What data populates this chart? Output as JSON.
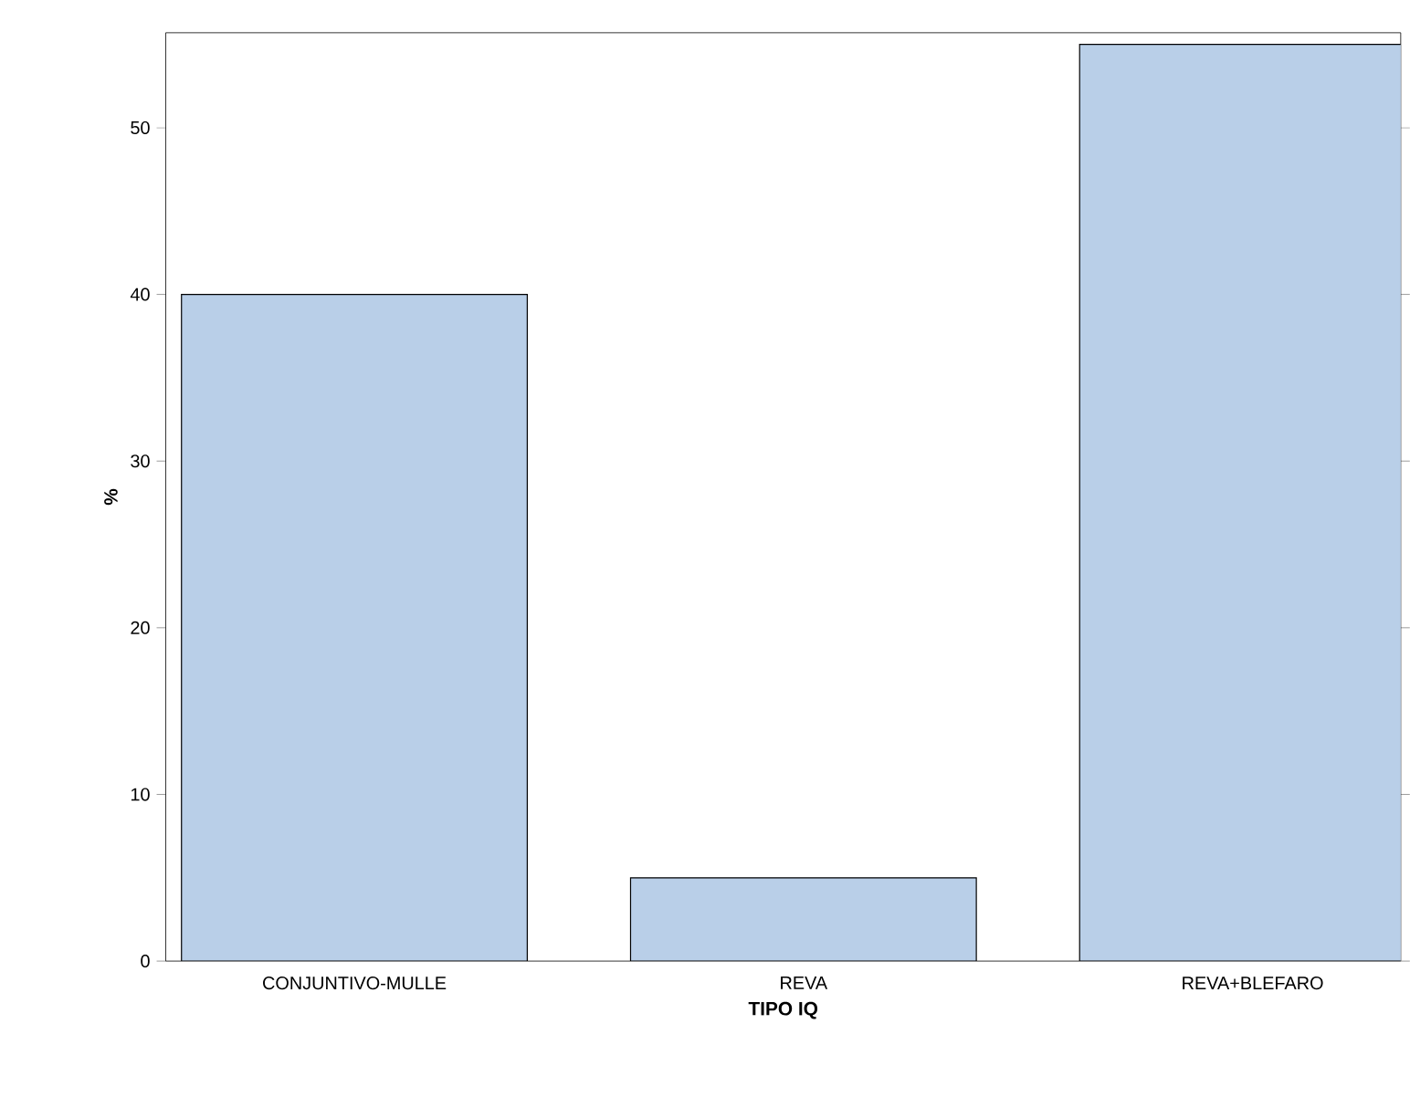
{
  "chart_data": {
    "type": "bar",
    "xlabel": "TIPO IQ",
    "ylabel": "%",
    "categories": [
      "CONJUNTIVO-MULLE",
      "REVA",
      "REVA+BLEFARO"
    ],
    "values": [
      40,
      5,
      55
    ],
    "color": "#b9cfe8",
    "ylim": [
      0,
      55.7
    ],
    "yticks": [
      0,
      10,
      20,
      30,
      40,
      50
    ],
    "grid": false
  }
}
